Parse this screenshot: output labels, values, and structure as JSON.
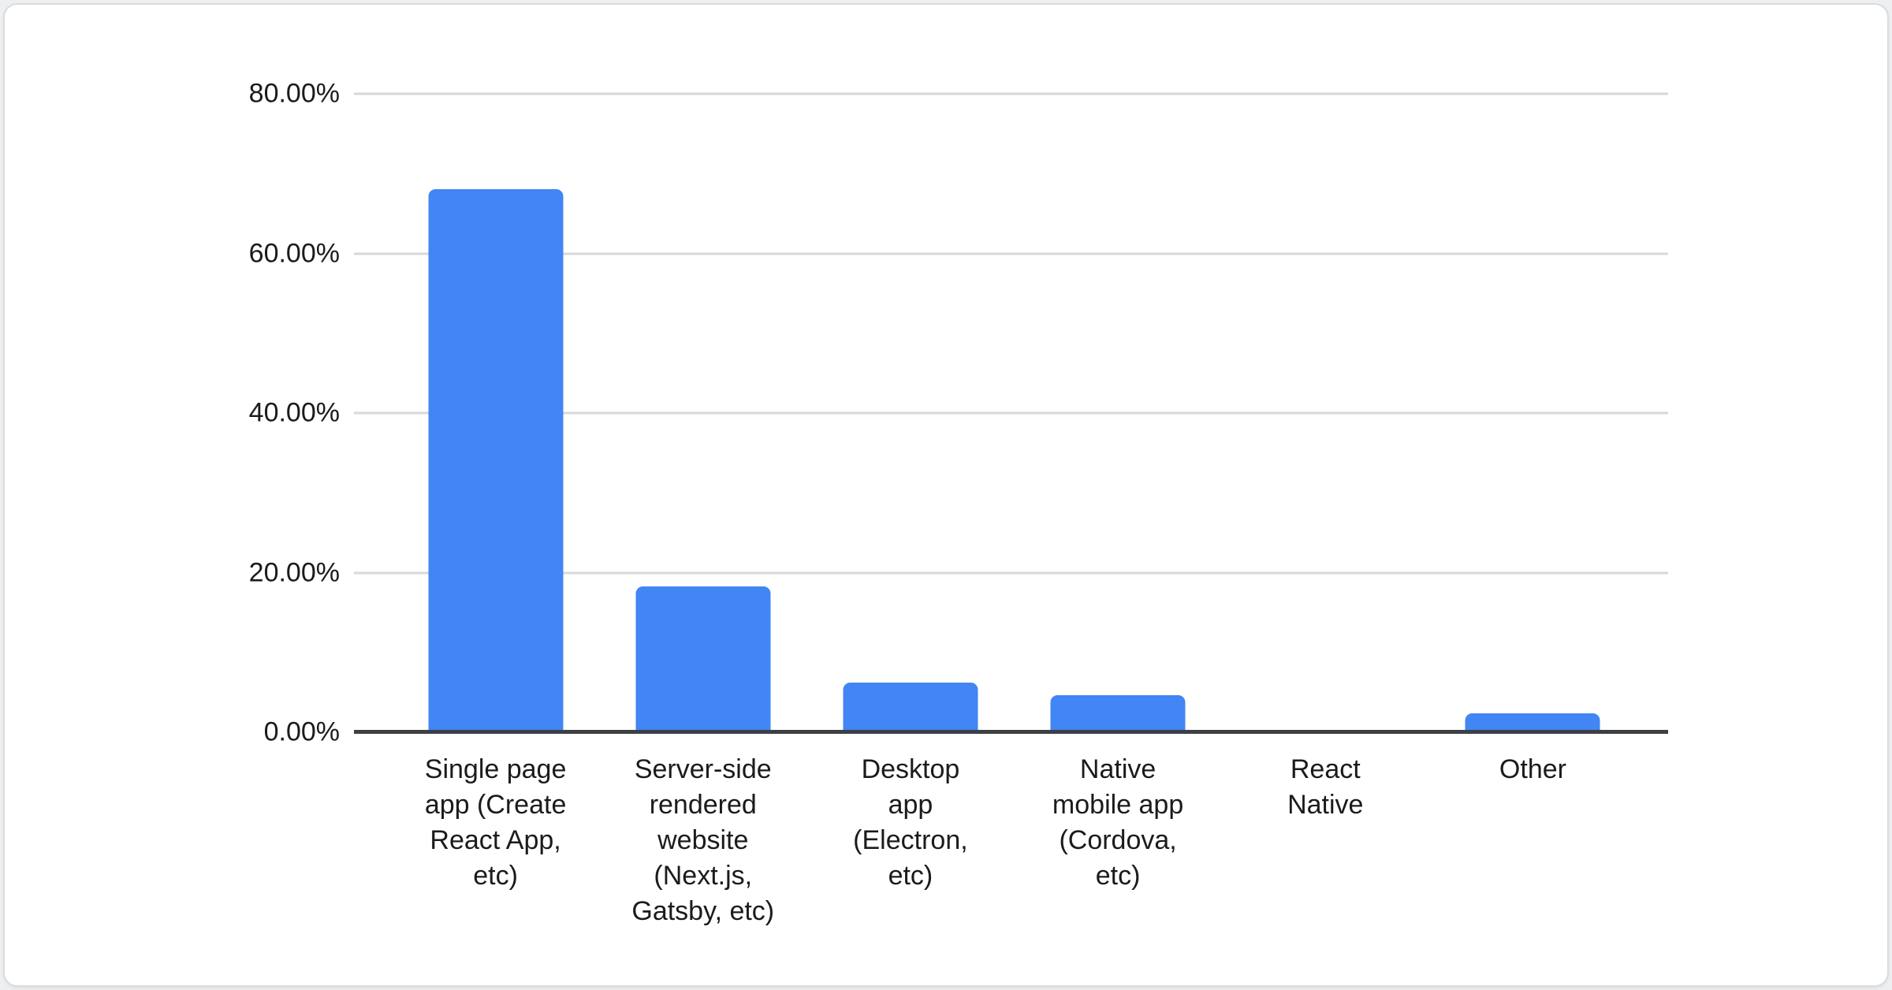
{
  "chart_data": {
    "type": "bar",
    "title": "",
    "categories": [
      "Single page app (Create React App, etc)",
      "Server-side rendered website (Next.js, Gatsby, etc)",
      "Desktop app (Electron, etc)",
      "Native mobile app (Cordova, etc)",
      "React Native",
      "Other"
    ],
    "category_label_lines": [
      "Single page\napp (Create\nReact App,\netc)",
      "Server-side\nrendered\nwebsite\n(Next.js,\nGatsby, etc)",
      "Desktop\napp\n(Electron,\netc)",
      "Native\nmobile app\n(Cordova,\netc)",
      "React\nNative",
      "Other"
    ],
    "category_slugs": [
      "single-page-app",
      "server-side-rendered-website",
      "desktop-app",
      "native-mobile-app",
      "react-native",
      "other"
    ],
    "values": [
      68.1,
      18.3,
      6.2,
      4.6,
      0,
      2.4
    ],
    "value_unit": "percent",
    "ylim": [
      0,
      80
    ],
    "y_ticks": [
      "80.00%",
      "60.00%",
      "40.00%",
      "20.00%",
      "0.00%"
    ],
    "y_tick_values": [
      80,
      60,
      40,
      20,
      0
    ],
    "grid": true,
    "legend": "none",
    "xlabel": "",
    "ylabel": "",
    "colors": {
      "bar": "#4285f4",
      "gridline": "#d8d8d8",
      "axis": "#3c4043",
      "label_text": "#1b1b1b",
      "card_background": "#ffffff",
      "card_border": "#d9dcdf"
    }
  }
}
